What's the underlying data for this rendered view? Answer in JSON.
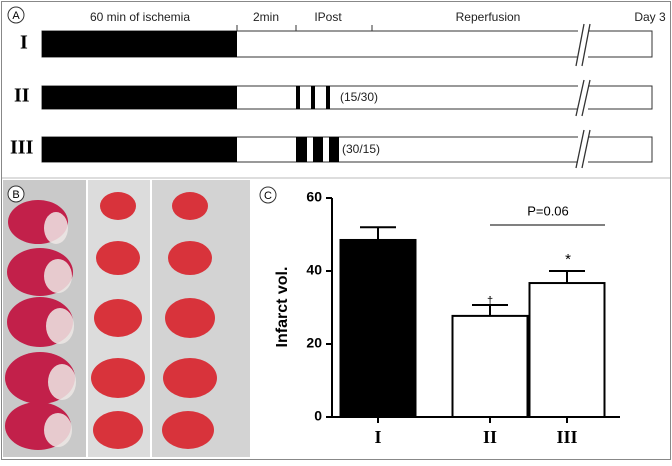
{
  "panels": {
    "a": "A",
    "b": "B",
    "c": "C"
  },
  "protocol": {
    "phases": [
      "60 min of ischemia",
      "2min",
      "IPost",
      "Reperfusion",
      "Day 3"
    ],
    "groups": [
      {
        "label": "I"
      },
      {
        "label": "II",
        "annotation": "(15/30)"
      },
      {
        "label": "III",
        "annotation": "(30/15)"
      }
    ]
  },
  "chart_data": {
    "type": "bar",
    "ylabel": "Infarct vol.",
    "categories": [
      "I",
      "II",
      "III"
    ],
    "values": [
      48.5,
      27.7,
      36.7
    ],
    "errors": [
      3.5,
      3.0,
      3.3
    ],
    "colors": [
      "#000000",
      "#ffffff",
      "#ffffff"
    ],
    "ylim": [
      0,
      60
    ],
    "yticks": [
      0,
      20,
      40,
      60
    ],
    "annotations": [
      "P=0.06",
      "†",
      "*"
    ]
  }
}
